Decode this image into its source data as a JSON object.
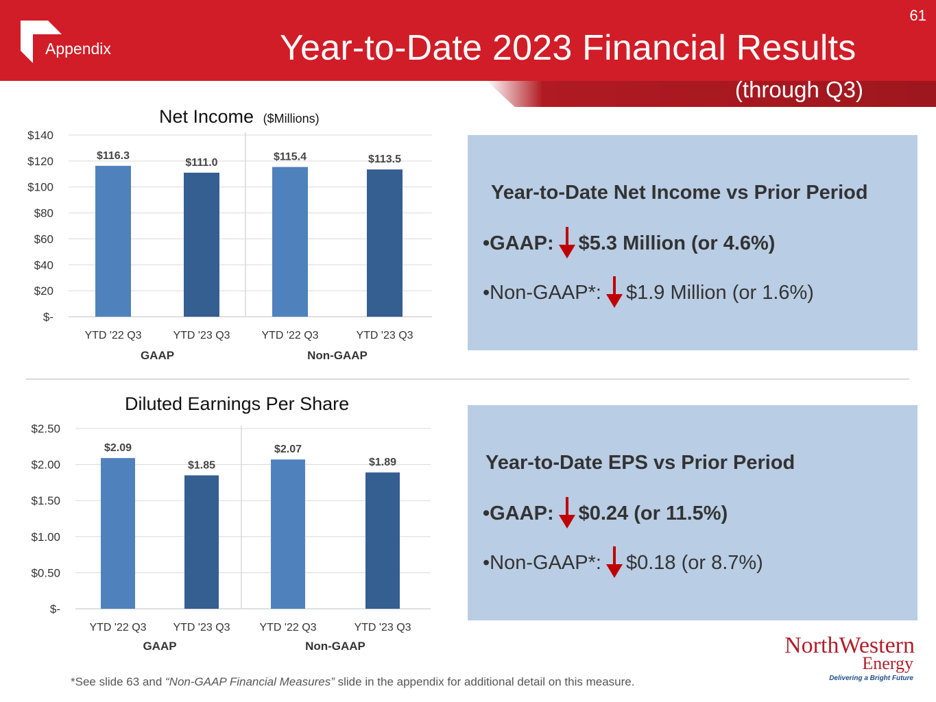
{
  "header": {
    "section": "Appendix",
    "title": "Year-to-Date 2023 Financial Results",
    "subtitle": "(through Q3)",
    "page_number": "61"
  },
  "colors": {
    "header_red": "#d11d27",
    "bar_light": "#4f81bd",
    "bar_dark": "#355e91",
    "panel_bg": "#b9cde4",
    "arrow_red": "#c00000"
  },
  "chart_data": [
    {
      "type": "bar",
      "title": "Net Income",
      "title_units": "($Millions)",
      "categories": [
        "YTD '22 Q3",
        "YTD '23 Q3",
        "YTD '22 Q3",
        "YTD '23 Q3"
      ],
      "groups": [
        "GAAP",
        "Non-GAAP"
      ],
      "values": [
        116.3,
        111.0,
        115.4,
        113.5
      ],
      "data_labels": [
        "$116.3",
        "$111.0",
        "$115.4",
        "$113.5"
      ],
      "ylim": [
        0,
        140
      ],
      "yticks": [
        0,
        20,
        40,
        60,
        80,
        100,
        120,
        140
      ],
      "ytick_labels": [
        "$-",
        "$20",
        "$40",
        "$60",
        "$80",
        "$100",
        "$120",
        "$140"
      ],
      "grid": true,
      "xlabel": "",
      "ylabel": ""
    },
    {
      "type": "bar",
      "title": "Diluted Earnings Per Share",
      "categories": [
        "YTD '22 Q3",
        "YTD '23 Q3",
        "YTD '22 Q3",
        "YTD '23 Q3"
      ],
      "groups": [
        "GAAP",
        "Non-GAAP"
      ],
      "values": [
        2.09,
        1.85,
        2.07,
        1.89
      ],
      "data_labels": [
        "$2.09",
        "$1.85",
        "$2.07",
        "$1.89"
      ],
      "ylim": [
        0,
        2.5
      ],
      "yticks": [
        0,
        0.5,
        1.0,
        1.5,
        2.0,
        2.5
      ],
      "ytick_labels": [
        "$-",
        "$0.50",
        "$1.00",
        "$1.50",
        "$2.00",
        "$2.50"
      ],
      "grid": true,
      "xlabel": "",
      "ylabel": ""
    }
  ],
  "net_income_panel": {
    "heading": "Year-to-Date Net Income vs Prior Period",
    "gaap_label": "•GAAP:",
    "gaap_value": "$5.3 Million (or 4.6%)",
    "nongaap_label": "•Non-GAAP*:",
    "nongaap_value": "$1.9 Million (or 1.6%)",
    "arrow_icon": "down-arrow-icon"
  },
  "eps_panel": {
    "heading": "Year-to-Date EPS vs Prior Period",
    "gaap_label": "•GAAP:",
    "gaap_value": "$0.24 (or 11.5%)",
    "nongaap_label": "•Non-GAAP*:",
    "nongaap_value": "$0.18 (or 8.7%)",
    "arrow_icon": "down-arrow-icon"
  },
  "footnote": {
    "prefix": "*See slide 63 and ",
    "italic": "“Non-GAAP Financial Measures”",
    "suffix": " slide in the appendix for additional detail on this measure."
  },
  "brand": {
    "name": "NorthWestern",
    "sub": "Energy",
    "tagline": "Delivering a Bright Future"
  }
}
